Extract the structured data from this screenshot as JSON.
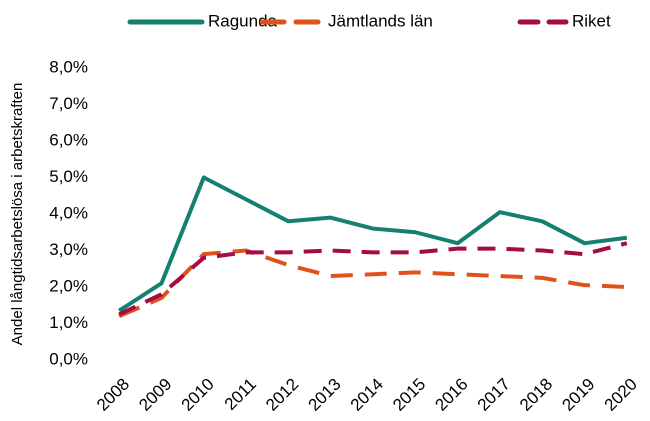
{
  "chart_data": {
    "type": "line",
    "y_label": "Andel långtidsarbetslösa i arbetskraften",
    "categories": [
      "2008",
      "2009",
      "2010",
      "2011",
      "2012",
      "2013",
      "2014",
      "2015",
      "2016",
      "2017",
      "2018",
      "2019",
      "2020"
    ],
    "series": [
      {
        "name": "Ragunda",
        "color": "#168070",
        "dashed": false,
        "values": [
          1.35,
          2.1,
          5.0,
          4.4,
          3.8,
          3.9,
          3.6,
          3.5,
          3.2,
          4.05,
          3.8,
          3.2,
          3.35
        ]
      },
      {
        "name": "Jämtlands län",
        "color": "#e0521b",
        "dashed": true,
        "values": [
          1.2,
          1.7,
          2.9,
          3.0,
          2.6,
          2.3,
          2.35,
          2.4,
          2.35,
          2.3,
          2.25,
          2.05,
          2.0
        ]
      },
      {
        "name": "Riket",
        "color": "#a50b45",
        "dashed": true,
        "values": [
          1.25,
          1.8,
          2.8,
          2.95,
          2.95,
          3.0,
          2.95,
          2.95,
          3.05,
          3.05,
          3.0,
          2.9,
          3.2
        ]
      }
    ],
    "ylim": [
      0,
      8
    ],
    "yticks": [
      {
        "value": 0,
        "label": "0,0%"
      },
      {
        "value": 1,
        "label": "1,0%"
      },
      {
        "value": 2,
        "label": "2,0%"
      },
      {
        "value": 3,
        "label": "3,0%"
      },
      {
        "value": 4,
        "label": "4,0%"
      },
      {
        "value": 5,
        "label": "5,0%"
      },
      {
        "value": 6,
        "label": "6,0%"
      },
      {
        "value": 7,
        "label": "7,0%"
      },
      {
        "value": 8,
        "label": "8,0%"
      }
    ],
    "grid": false,
    "legend": "top"
  }
}
